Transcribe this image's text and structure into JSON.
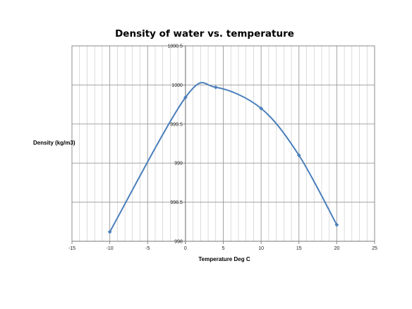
{
  "chart_data": {
    "type": "scatter",
    "title": "Density of water vs. temperature",
    "xlabel": "Temperature Deg C",
    "ylabel": "Density (kg/m3)",
    "xlim": [
      -15,
      25
    ],
    "ylim": [
      998,
      1000.5
    ],
    "x_ticks": [
      -15,
      -10,
      -5,
      0,
      5,
      10,
      15,
      20,
      25
    ],
    "y_ticks": [
      998,
      998.5,
      999,
      999.5,
      1000,
      1000.5
    ],
    "grid": true,
    "legend": "none",
    "line_style": "smooth",
    "series": [
      {
        "color": "#4a7ebb",
        "points": [
          {
            "x": -10,
            "y": 998.12
          },
          {
            "x": 0,
            "y": 999.84
          },
          {
            "x": 4,
            "y": 999.97
          },
          {
            "x": 10,
            "y": 999.7
          },
          {
            "x": 15,
            "y": 999.1
          },
          {
            "x": 20,
            "y": 998.21
          }
        ]
      }
    ]
  }
}
